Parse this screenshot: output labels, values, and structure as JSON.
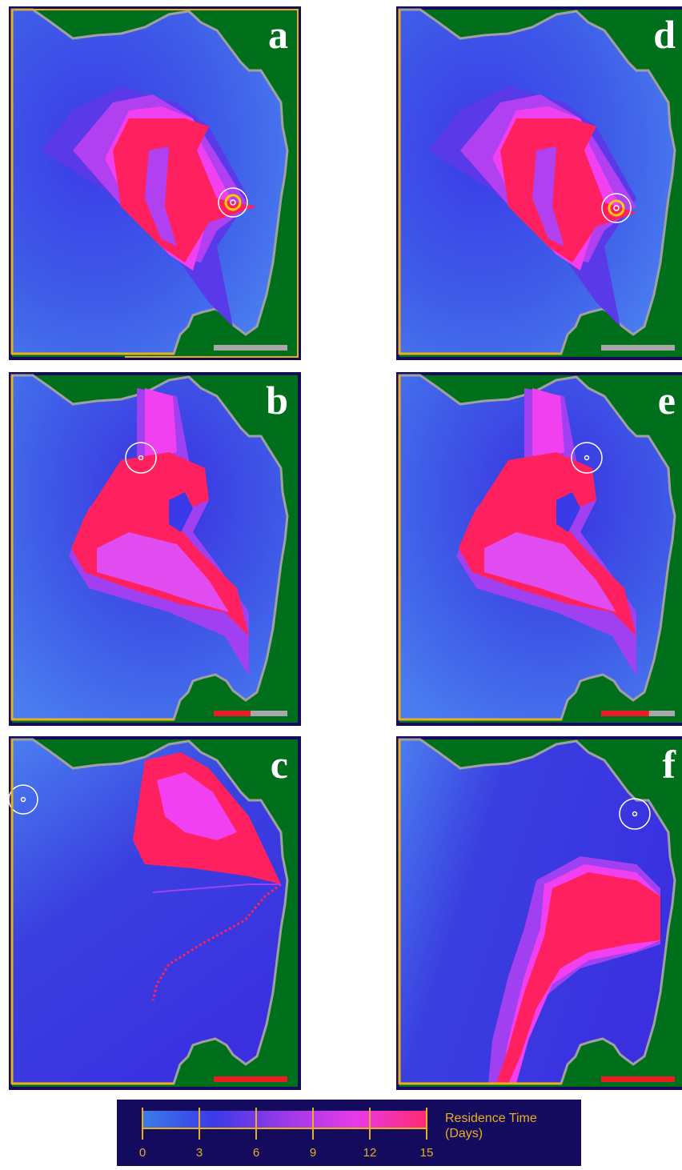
{
  "figure": {
    "panels": [
      {
        "id": "a",
        "letter": "a",
        "progress": 0.0
      },
      {
        "id": "b",
        "letter": "b",
        "progress": 0.5
      },
      {
        "id": "c",
        "letter": "c",
        "progress": 1.0
      },
      {
        "id": "d",
        "letter": "d",
        "progress": 0.0
      },
      {
        "id": "e",
        "letter": "e",
        "progress": 0.65
      },
      {
        "id": "f",
        "letter": "f",
        "progress": 1.0
      }
    ],
    "colorbar": {
      "title_line1": "Residence Time",
      "title_line2": "(Days)",
      "ticks": [
        "0",
        "3",
        "6",
        "9",
        "12",
        "15"
      ],
      "min": 0,
      "max": 15,
      "colors": [
        "#3a7ce8",
        "#3a3ae8",
        "#9a3ae8",
        "#e83ae8",
        "#ff2a70"
      ]
    },
    "colors": {
      "land": "#006f1c",
      "water_light": "#4a7ef0",
      "water_dark": "#3a30e0",
      "purple": "#a040f0",
      "magenta": "#f040f0",
      "red": "#ff2060",
      "coast": "#a0a0a0",
      "frame": "#140a5e",
      "boundary": "#e8b020",
      "bar_done": "#ee1c24",
      "bar_todo": "#a8a8a8"
    }
  }
}
